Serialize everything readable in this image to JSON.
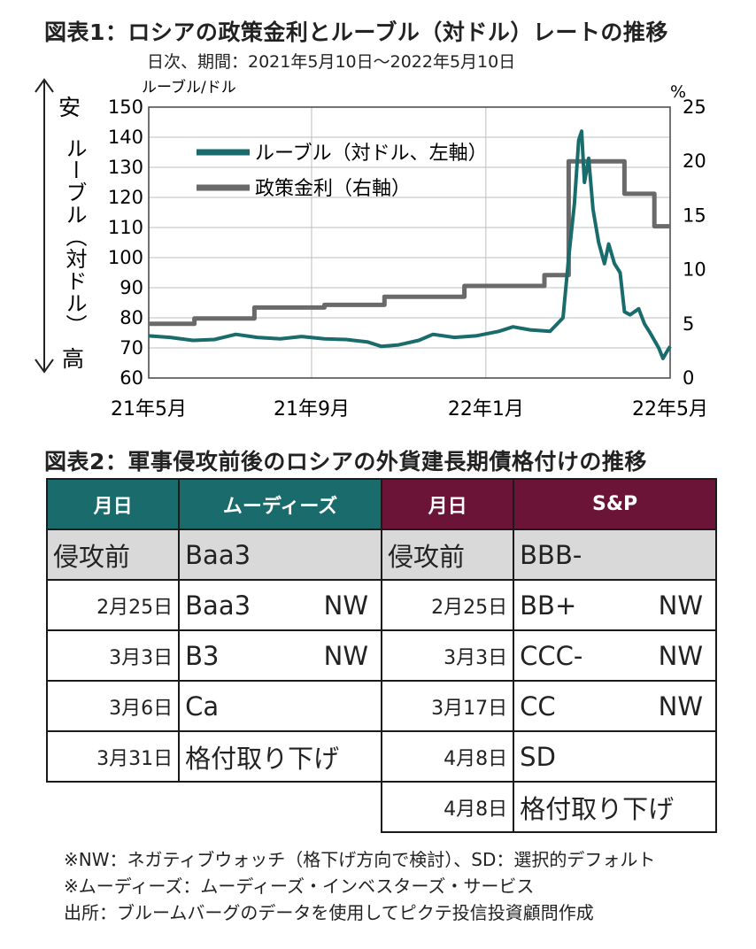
{
  "figure1": {
    "title": "図表1：ロシアの政策金利とルーブル（対ドル）レートの推移",
    "subtitle": "日次、期間：2021年5月10日～2022年5月10日",
    "left_unit": "ルーブル/ドル",
    "right_unit": "%",
    "left_axis_top": "安",
    "left_axis_bottom": "高",
    "left_axis_vertical_label": "ルーブル（対ドル）"
  },
  "chart_data": {
    "type": "line",
    "x_tick_labels": [
      "21年5月",
      "21年9月",
      "22年1月",
      "22年5月"
    ],
    "y_left_ticks": [
      "150",
      "140",
      "130",
      "120",
      "110",
      "100",
      "90",
      "80",
      "70",
      "60"
    ],
    "y_right_ticks": [
      "25",
      "20",
      "15",
      "10",
      "5",
      "0"
    ],
    "ylim_left": [
      60,
      150
    ],
    "ylim_right": [
      0,
      25
    ],
    "grid": true,
    "legend_position": "top-left",
    "series": [
      {
        "name": "ルーブル（対ドル、左軸）",
        "axis": "left",
        "color": "#1a6b6b",
        "points": [
          [
            "2021-05-10",
            74.0
          ],
          [
            "2021-05-25",
            73.5
          ],
          [
            "2021-06-10",
            72.5
          ],
          [
            "2021-06-25",
            72.8
          ],
          [
            "2021-07-10",
            74.5
          ],
          [
            "2021-07-25",
            73.5
          ],
          [
            "2021-08-10",
            73.0
          ],
          [
            "2021-08-25",
            73.8
          ],
          [
            "2021-09-10",
            73.0
          ],
          [
            "2021-09-25",
            72.8
          ],
          [
            "2021-10-10",
            72.0
          ],
          [
            "2021-10-20",
            70.5
          ],
          [
            "2021-11-01",
            71.0
          ],
          [
            "2021-11-15",
            72.5
          ],
          [
            "2021-11-25",
            74.5
          ],
          [
            "2021-12-10",
            73.5
          ],
          [
            "2021-12-25",
            74.0
          ],
          [
            "2022-01-10",
            75.5
          ],
          [
            "2022-01-20",
            77.0
          ],
          [
            "2022-02-01",
            76.0
          ],
          [
            "2022-02-15",
            75.5
          ],
          [
            "2022-02-24",
            80.0
          ],
          [
            "2022-02-28",
            100.0
          ],
          [
            "2022-03-04",
            118.0
          ],
          [
            "2022-03-07",
            139.0
          ],
          [
            "2022-03-09",
            142.0
          ],
          [
            "2022-03-11",
            125.0
          ],
          [
            "2022-03-14",
            133.0
          ],
          [
            "2022-03-17",
            116.0
          ],
          [
            "2022-03-21",
            105.0
          ],
          [
            "2022-03-25",
            98.0
          ],
          [
            "2022-03-28",
            104.5
          ],
          [
            "2022-04-01",
            98.0
          ],
          [
            "2022-04-05",
            95.0
          ],
          [
            "2022-04-08",
            82.0
          ],
          [
            "2022-04-12",
            81.0
          ],
          [
            "2022-04-18",
            83.0
          ],
          [
            "2022-04-22",
            78.0
          ],
          [
            "2022-04-26",
            75.0
          ],
          [
            "2022-05-02",
            70.0
          ],
          [
            "2022-05-05",
            66.5
          ],
          [
            "2022-05-08",
            69.0
          ],
          [
            "2022-05-10",
            70.5
          ]
        ]
      },
      {
        "name": "政策金利（右軸）",
        "axis": "right",
        "color": "#6a6a6a",
        "points": [
          [
            "2021-05-10",
            5.0
          ],
          [
            "2021-06-11",
            5.0
          ],
          [
            "2021-06-11",
            5.5
          ],
          [
            "2021-07-23",
            5.5
          ],
          [
            "2021-07-23",
            6.5
          ],
          [
            "2021-09-10",
            6.5
          ],
          [
            "2021-09-10",
            6.75
          ],
          [
            "2021-10-22",
            6.75
          ],
          [
            "2021-10-22",
            7.5
          ],
          [
            "2021-12-17",
            7.5
          ],
          [
            "2021-12-17",
            8.5
          ],
          [
            "2022-02-11",
            8.5
          ],
          [
            "2022-02-11",
            9.5
          ],
          [
            "2022-02-28",
            9.5
          ],
          [
            "2022-02-28",
            20.0
          ],
          [
            "2022-04-08",
            20.0
          ],
          [
            "2022-04-08",
            17.0
          ],
          [
            "2022-04-29",
            17.0
          ],
          [
            "2022-04-29",
            14.0
          ],
          [
            "2022-05-10",
            14.0
          ]
        ]
      }
    ]
  },
  "figure2": {
    "title": "図表2：軍事侵攻前後のロシアの外貨建長期債格付けの推移",
    "moodys": {
      "header_date": "月日",
      "header_agency": "ムーディーズ",
      "rows": [
        {
          "date": "侵攻前",
          "rating": "Baa3",
          "note": ""
        },
        {
          "date": "2月25日",
          "rating": "Baa3",
          "note": "NW"
        },
        {
          "date": "3月3日",
          "rating": "B3",
          "note": "NW"
        },
        {
          "date": "3月6日",
          "rating": "Ca",
          "note": ""
        },
        {
          "date": "3月31日",
          "rating": "格付取り下げ",
          "note": ""
        }
      ]
    },
    "sp": {
      "header_date": "月日",
      "header_agency": "S&P",
      "rows": [
        {
          "date": "侵攻前",
          "rating": "BBB-",
          "note": ""
        },
        {
          "date": "2月25日",
          "rating": "BB+",
          "note": "NW"
        },
        {
          "date": "3月3日",
          "rating": "CCC-",
          "note": "NW"
        },
        {
          "date": "3月17日",
          "rating": "CC",
          "note": "NW"
        },
        {
          "date": "4月8日",
          "rating": "SD",
          "note": ""
        },
        {
          "date": "4月8日",
          "rating": "格付取り下げ",
          "note": ""
        }
      ]
    }
  },
  "notes": [
    "※NW：ネガティブウォッチ（格下げ方向で検討）、SD：選択的デフォルト",
    "※ムーディーズ：ムーディーズ・インベスターズ・サービス",
    "出所：ブルームバーグのデータを使用してピクテ投信投資顧問作成"
  ]
}
